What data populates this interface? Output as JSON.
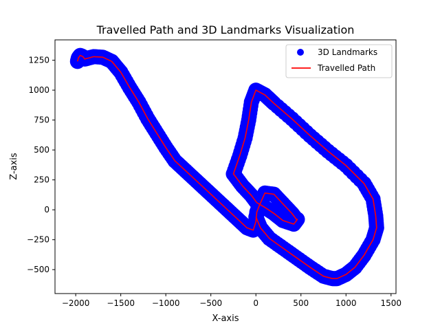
{
  "chart_data": {
    "type": "line",
    "title": "Travelled Path and 3D Landmarks Visualization",
    "xlabel": "X-axis",
    "ylabel": "Z-axis",
    "xlim": [
      -2230,
      1555
    ],
    "ylim": [
      -700,
      1420
    ],
    "x_ticks": [
      -2000,
      -1500,
      -1000,
      -500,
      0,
      500,
      1000,
      1500
    ],
    "y_ticks": [
      -500,
      -250,
      0,
      250,
      500,
      750,
      1000,
      1250
    ],
    "legend": {
      "position": "top-right"
    },
    "series": [
      {
        "name": "3D Landmarks",
        "kind": "scatter",
        "color": "#0000ff",
        "x": [
          -1980,
          -1970,
          -1950,
          -1920,
          -1900,
          -1850,
          -1800,
          -1700,
          -1600,
          -1500,
          -1400,
          -1300,
          -1200,
          -1100,
          -1000,
          -900,
          -800,
          -700,
          -600,
          -500,
          -400,
          -300,
          -200,
          -100,
          -30,
          0,
          10,
          40,
          100,
          200,
          300,
          400,
          450,
          460,
          420,
          300,
          200,
          100,
          10,
          -50,
          -150,
          -250,
          -180,
          -120,
          -80,
          -50,
          0,
          100,
          200,
          400,
          600,
          800,
          1000,
          1200,
          1300,
          1330,
          1340,
          1300,
          1200,
          1100,
          1000,
          900,
          850,
          750,
          600,
          450,
          300,
          150,
          50,
          0
        ],
        "y": [
          1240,
          1270,
          1290,
          1280,
          1260,
          1270,
          1280,
          1275,
          1240,
          1150,
          1020,
          900,
          760,
          640,
          520,
          410,
          340,
          270,
          200,
          130,
          60,
          -10,
          -80,
          -150,
          -170,
          -100,
          -20,
          40,
          140,
          130,
          50,
          -30,
          -80,
          -80,
          -120,
          -90,
          -30,
          20,
          60,
          120,
          200,
          300,
          450,
          600,
          750,
          900,
          1000,
          960,
          890,
          760,
          620,
          490,
          370,
          220,
          90,
          -50,
          -150,
          -250,
          -380,
          -480,
          -540,
          -575,
          -575,
          -555,
          -480,
          -400,
          -320,
          -240,
          -150,
          -60
        ]
      },
      {
        "name": "Travelled Path",
        "kind": "line",
        "color": "#ff0000",
        "x": [
          -1980,
          -1970,
          -1950,
          -1920,
          -1900,
          -1850,
          -1800,
          -1700,
          -1600,
          -1500,
          -1400,
          -1300,
          -1200,
          -1100,
          -1000,
          -900,
          -800,
          -700,
          -600,
          -500,
          -400,
          -300,
          -200,
          -100,
          -30,
          0,
          10,
          40,
          100,
          200,
          300,
          400,
          450,
          460,
          420,
          300,
          200,
          100,
          10,
          -50,
          -150,
          -250,
          -180,
          -120,
          -80,
          -50,
          0,
          100,
          200,
          400,
          600,
          800,
          1000,
          1200,
          1300,
          1330,
          1340,
          1300,
          1200,
          1100,
          1000,
          900,
          850,
          750,
          600,
          450,
          300,
          150,
          50,
          0
        ],
        "y": [
          1240,
          1270,
          1290,
          1280,
          1260,
          1270,
          1280,
          1275,
          1240,
          1150,
          1020,
          900,
          760,
          640,
          520,
          410,
          340,
          270,
          200,
          130,
          60,
          -10,
          -80,
          -150,
          -170,
          -100,
          -20,
          40,
          140,
          130,
          50,
          -30,
          -80,
          -80,
          -120,
          -90,
          -30,
          20,
          60,
          120,
          200,
          300,
          450,
          600,
          750,
          900,
          1000,
          960,
          890,
          760,
          620,
          490,
          370,
          220,
          90,
          -50,
          -150,
          -250,
          -380,
          -480,
          -540,
          -575,
          -575,
          -555,
          -480,
          -400,
          -320,
          -240,
          -150,
          -60
        ]
      }
    ]
  }
}
